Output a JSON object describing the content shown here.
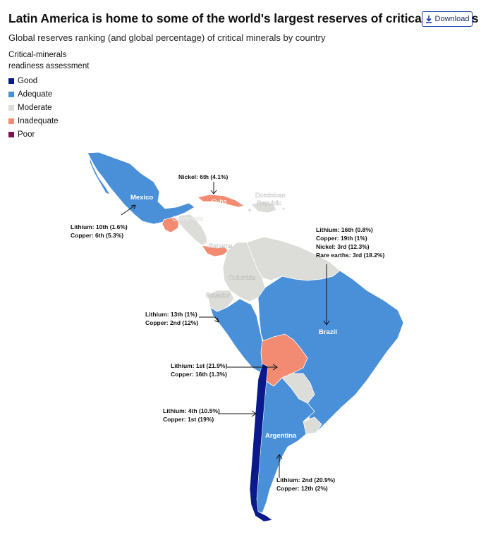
{
  "header": {
    "title": "Latin America is home to some of the world's largest reserves of critical minerals",
    "subtitle": "Global reserves ranking (and global percentage) of critical minerals by country",
    "download_label": "Download"
  },
  "legend": {
    "title_line1": "Critical-minerals",
    "title_line2": "readiness assessment",
    "items": [
      {
        "label": "Good",
        "color": "#0a1a8c"
      },
      {
        "label": "Adequate",
        "color": "#4a90d9"
      },
      {
        "label": "Moderate",
        "color": "#dcdcd8"
      },
      {
        "label": "Inadequate",
        "color": "#f28b72"
      },
      {
        "label": "Poor",
        "color": "#7a1450"
      }
    ]
  },
  "countries": {
    "mexico": "Mexico",
    "guatemala": "Guatemala",
    "cuba": "Cuba",
    "dominican_republic_1": "Dominican",
    "dominican_republic_2": "Republic",
    "panama": "Panama",
    "colombia": "Colombia",
    "ecuador": "Ecuador",
    "brazil": "Brazil",
    "argentina": "Argentina"
  },
  "annotations": {
    "mexico_1": "Lithium: 10th (1.6%)",
    "mexico_2": "Copper: 6th (5.3%)",
    "cuba_1": "Nickel: 6th (4.1%)",
    "brazil_1": "Lithium: 16th (0.8%)",
    "brazil_2": "Copper: 19th (1%)",
    "brazil_3": "Nickel: 3rd (12.3%)",
    "brazil_4": "Rare earths: 3rd (18.2%)",
    "peru_1": "Lithium: 13th (1%)",
    "peru_2": "Copper: 2nd (12%)",
    "bolivia_1": "Lithium: 1st (21.9%)",
    "bolivia_2": "Copper: 16th (1.3%)",
    "chile_1": "Lithium: 4th (10.5%)",
    "chile_2": "Copper: 1st (19%)",
    "argentina_1": "Lithium: 2nd (20.9%)",
    "argentina_2": "Copper: 12th (2%)"
  }
}
